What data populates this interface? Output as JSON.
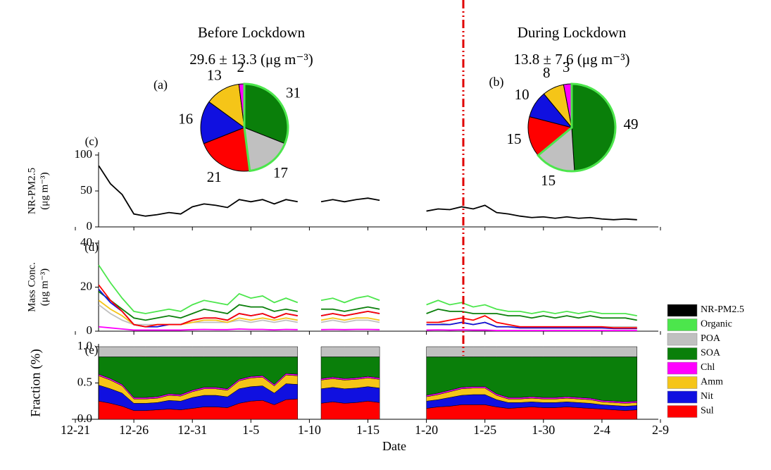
{
  "chart_data": [
    {
      "type": "pie",
      "title": "Before Lockdown",
      "subtitle": "29.6 ± 13.3 (μg m⁻³)",
      "panel": "(a)",
      "values": [
        31,
        17,
        21,
        16,
        13,
        2
      ],
      "colors": [
        "#0a7f0a",
        "#c0c0c0",
        "#ff0000",
        "#1010e0",
        "#f5c518",
        "#ff00ff"
      ]
    },
    {
      "type": "pie",
      "title": "During Lockdown",
      "subtitle": "13.8 ± 7.6 (μg m⁻³)",
      "panel": "(b)",
      "values": [
        49,
        15,
        15,
        10,
        8,
        3
      ],
      "colors": [
        "#0a7f0a",
        "#c0c0c0",
        "#ff0000",
        "#1010e0",
        "#f5c518",
        "#ff00ff"
      ]
    },
    {
      "type": "line",
      "panel": "(c)",
      "ylabel": [
        "NR-PM2.5",
        "(μg m⁻³)"
      ],
      "x": [
        "12-21",
        "12-22",
        "12-23",
        "12-24",
        "12-25",
        "12-26",
        "12-27",
        "12-28",
        "12-29",
        "12-30",
        "12-31",
        "1-1",
        "1-2",
        "1-3",
        "1-4",
        "1-5",
        "1-6",
        "1-7",
        "1-8",
        "1-9",
        "1-10",
        "1-11",
        "1-12",
        "1-13",
        "1-14",
        "1-15",
        "1-16",
        "1-17",
        "1-18",
        "1-19",
        "1-20",
        "1-21",
        "1-22",
        "1-23",
        "1-24",
        "1-25",
        "1-26",
        "1-27",
        "1-28",
        "1-29",
        "1-30",
        "1-31",
        "2-1",
        "2-2",
        "2-3",
        "2-4",
        "2-5",
        "2-6",
        "2-7",
        "2-8",
        "2-9"
      ],
      "ylim": [
        0,
        100
      ],
      "yticks": [
        0,
        50,
        100
      ],
      "series": [
        {
          "name": "NR-PM2.5",
          "color": "#000000",
          "values": [
            null,
            null,
            85,
            60,
            45,
            18,
            15,
            17,
            20,
            18,
            28,
            32,
            30,
            27,
            38,
            35,
            38,
            32,
            38,
            35,
            null,
            35,
            38,
            35,
            38,
            40,
            37,
            null,
            null,
            null,
            22,
            25,
            24,
            28,
            25,
            30,
            20,
            18,
            15,
            13,
            14,
            12,
            14,
            12,
            13,
            11,
            10,
            11,
            10,
            null,
            null
          ]
        }
      ]
    },
    {
      "type": "line",
      "panel": "(d)",
      "ylabel": [
        "Mass Conc.",
        "(μg m⁻³)"
      ],
      "x": [
        "12-21",
        "12-22",
        "12-23",
        "12-24",
        "12-25",
        "12-26",
        "12-27",
        "12-28",
        "12-29",
        "12-30",
        "12-31",
        "1-1",
        "1-2",
        "1-3",
        "1-4",
        "1-5",
        "1-6",
        "1-7",
        "1-8",
        "1-9",
        "1-10",
        "1-11",
        "1-12",
        "1-13",
        "1-14",
        "1-15",
        "1-16",
        "1-17",
        "1-18",
        "1-19",
        "1-20",
        "1-21",
        "1-22",
        "1-23",
        "1-24",
        "1-25",
        "1-26",
        "1-27",
        "1-28",
        "1-29",
        "1-30",
        "1-31",
        "2-1",
        "2-2",
        "2-3",
        "2-4",
        "2-5",
        "2-6",
        "2-7",
        "2-8",
        "2-9"
      ],
      "ylim": [
        0,
        40
      ],
      "yticks": [
        0,
        20,
        40
      ],
      "series": [
        {
          "name": "Organic",
          "color": "#4ce64c",
          "values": [
            null,
            null,
            30,
            22,
            15,
            9,
            8,
            9,
            10,
            9,
            12,
            14,
            13,
            12,
            17,
            15,
            16,
            13,
            15,
            13,
            null,
            14,
            15,
            13,
            15,
            16,
            14,
            null,
            null,
            null,
            12,
            14,
            12,
            13,
            11,
            12,
            10,
            9,
            9,
            8,
            9,
            8,
            9,
            8,
            9,
            8,
            8,
            8,
            7,
            null,
            null
          ]
        },
        {
          "name": "POA",
          "color": "#c0c0c0",
          "values": [
            null,
            null,
            12,
            8,
            5,
            3,
            3,
            3,
            3,
            3,
            4,
            4,
            4,
            4,
            5,
            4,
            5,
            4,
            5,
            4,
            null,
            4,
            5,
            4,
            5,
            5,
            4,
            null,
            null,
            null,
            4,
            4,
            3,
            4,
            3,
            4,
            2,
            2,
            2,
            2,
            2,
            2,
            2,
            2,
            2,
            2,
            2,
            2,
            2,
            null,
            null
          ]
        },
        {
          "name": "SOA",
          "color": "#0a7f0a",
          "values": [
            null,
            null,
            18,
            14,
            10,
            6,
            5,
            6,
            7,
            6,
            8,
            10,
            9,
            8,
            12,
            11,
            11,
            9,
            10,
            9,
            null,
            10,
            10,
            9,
            10,
            11,
            10,
            null,
            null,
            null,
            8,
            10,
            9,
            9,
            8,
            8,
            8,
            7,
            7,
            6,
            7,
            6,
            7,
            6,
            7,
            6,
            6,
            6,
            5,
            null,
            null
          ]
        },
        {
          "name": "Chl",
          "color": "#ff00ff",
          "values": [
            null,
            null,
            2,
            1.5,
            1,
            0.5,
            0.5,
            0.5,
            0.5,
            0.5,
            0.7,
            0.8,
            0.7,
            0.7,
            1,
            0.8,
            0.8,
            0.6,
            0.8,
            0.7,
            null,
            0.7,
            0.8,
            0.7,
            0.8,
            0.8,
            0.7,
            null,
            null,
            null,
            0.5,
            0.6,
            0.5,
            0.6,
            0.5,
            0.5,
            0.3,
            0.3,
            0.3,
            0.3,
            0.3,
            0.3,
            0.3,
            0.3,
            0.3,
            0.3,
            0.3,
            0.3,
            0.3,
            null,
            null
          ]
        },
        {
          "name": "Amm",
          "color": "#f5c518",
          "values": [
            null,
            null,
            14,
            10,
            7,
            3,
            2,
            3,
            3,
            3,
            4,
            5,
            5,
            4,
            6,
            5,
            6,
            5,
            6,
            5,
            null,
            5,
            6,
            5,
            6,
            6,
            5,
            null,
            null,
            null,
            3,
            3,
            3,
            4,
            3,
            4,
            2,
            2,
            1.5,
            1.5,
            1.5,
            1.5,
            1.5,
            1.5,
            1.5,
            1.5,
            1.2,
            1.2,
            1.2,
            null,
            null
          ]
        },
        {
          "name": "Nit",
          "color": "#1010e0",
          "values": [
            null,
            null,
            19,
            13,
            9,
            3,
            2,
            2,
            3,
            3,
            5,
            6,
            6,
            5,
            8,
            7,
            8,
            6,
            8,
            7,
            null,
            7,
            8,
            7,
            8,
            9,
            8,
            null,
            null,
            null,
            3,
            3,
            3,
            4,
            3,
            4,
            2,
            2,
            1.5,
            1.5,
            1.5,
            1.5,
            1.5,
            1.5,
            1.5,
            1.5,
            1.2,
            1.2,
            1.2,
            null,
            null
          ]
        },
        {
          "name": "Sul",
          "color": "#ff0000",
          "values": [
            null,
            null,
            21,
            14,
            9,
            3,
            2,
            3,
            3,
            3,
            5,
            6,
            6,
            5,
            8,
            7,
            8,
            6,
            8,
            7,
            null,
            7,
            8,
            7,
            8,
            9,
            8,
            null,
            null,
            null,
            4,
            4,
            5,
            6,
            5,
            7,
            4,
            3,
            2,
            2,
            2,
            2,
            2,
            2,
            2,
            2,
            1.5,
            1.5,
            1.5,
            null,
            null
          ]
        }
      ]
    },
    {
      "type": "stacked_area",
      "panel": "(e)",
      "ylabel": "Fraction (%)",
      "xlabel": "Date",
      "x": [
        "12-21",
        "12-22",
        "12-23",
        "12-24",
        "12-25",
        "12-26",
        "12-27",
        "12-28",
        "12-29",
        "12-30",
        "12-31",
        "1-1",
        "1-2",
        "1-3",
        "1-4",
        "1-5",
        "1-6",
        "1-7",
        "1-8",
        "1-9",
        "1-10",
        "1-11",
        "1-12",
        "1-13",
        "1-14",
        "1-15",
        "1-16",
        "1-17",
        "1-18",
        "1-19",
        "1-20",
        "1-21",
        "1-22",
        "1-23",
        "1-24",
        "1-25",
        "1-26",
        "1-27",
        "1-28",
        "1-29",
        "1-30",
        "1-31",
        "2-1",
        "2-2",
        "2-3",
        "2-4",
        "2-5",
        "2-6",
        "2-7",
        "2-8",
        "2-9"
      ],
      "xticks": [
        "12-21",
        "12-26",
        "12-31",
        "1-5",
        "1-10",
        "1-15",
        "1-20",
        "1-25",
        "1-30",
        "2-4",
        "2-9"
      ],
      "ylim": [
        0,
        1
      ],
      "yticks": [
        {
          "value": 0,
          "label": "0.0"
        },
        {
          "value": 0.5,
          "label": "0.5"
        },
        {
          "value": 1,
          "label": "1.0"
        }
      ],
      "series": [
        {
          "color": "#ff0000",
          "values": [
            null,
            null,
            0.25,
            0.22,
            0.18,
            0.12,
            0.12,
            0.13,
            0.14,
            0.13,
            0.15,
            0.17,
            0.17,
            0.16,
            0.22,
            0.25,
            0.26,
            0.2,
            0.27,
            0.28,
            null,
            0.22,
            0.24,
            0.22,
            0.23,
            0.25,
            0.23,
            null,
            null,
            null,
            0.15,
            0.17,
            0.18,
            0.2,
            0.2,
            0.2,
            0.17,
            0.15,
            0.16,
            0.17,
            0.16,
            0.16,
            0.17,
            0.16,
            0.15,
            0.14,
            0.13,
            0.12,
            0.13,
            null,
            null
          ]
        },
        {
          "color": "#1010e0",
          "values": [
            null,
            null,
            0.22,
            0.2,
            0.18,
            0.1,
            0.1,
            0.1,
            0.12,
            0.12,
            0.15,
            0.16,
            0.16,
            0.15,
            0.2,
            0.2,
            0.2,
            0.16,
            0.22,
            0.2,
            null,
            0.2,
            0.2,
            0.2,
            0.2,
            0.2,
            0.2,
            null,
            null,
            null,
            0.1,
            0.1,
            0.12,
            0.13,
            0.14,
            0.14,
            0.1,
            0.08,
            0.07,
            0.07,
            0.07,
            0.07,
            0.07,
            0.07,
            0.07,
            0.06,
            0.06,
            0.06,
            0.06,
            null,
            null
          ]
        },
        {
          "color": "#f5c518",
          "values": [
            null,
            null,
            0.13,
            0.12,
            0.1,
            0.06,
            0.06,
            0.06,
            0.07,
            0.07,
            0.08,
            0.09,
            0.09,
            0.09,
            0.11,
            0.12,
            0.12,
            0.1,
            0.12,
            0.12,
            null,
            0.12,
            0.12,
            0.12,
            0.12,
            0.12,
            0.12,
            null,
            null,
            null,
            0.06,
            0.07,
            0.08,
            0.09,
            0.09,
            0.09,
            0.06,
            0.05,
            0.05,
            0.05,
            0.05,
            0.05,
            0.05,
            0.05,
            0.05,
            0.04,
            0.04,
            0.04,
            0.04,
            null,
            null
          ]
        },
        {
          "color": "#ff00ff",
          "values": [
            null,
            null,
            0.02,
            0.02,
            0.02,
            0.02,
            0.02,
            0.02,
            0.02,
            0.02,
            0.02,
            0.02,
            0.02,
            0.02,
            0.02,
            0.02,
            0.02,
            0.02,
            0.02,
            0.02,
            null,
            0.02,
            0.02,
            0.02,
            0.02,
            0.02,
            0.02,
            null,
            null,
            null,
            0.02,
            0.02,
            0.02,
            0.02,
            0.02,
            0.02,
            0.02,
            0.02,
            0.02,
            0.02,
            0.02,
            0.02,
            0.02,
            0.02,
            0.02,
            0.02,
            0.02,
            0.02,
            0.02,
            null,
            null
          ]
        },
        {
          "color": "#0a7f0a",
          "values": [
            null,
            null,
            0.24,
            0.3,
            0.38,
            0.56,
            0.56,
            0.55,
            0.51,
            0.52,
            0.46,
            0.42,
            0.42,
            0.44,
            0.31,
            0.27,
            0.26,
            0.38,
            0.23,
            0.24,
            null,
            0.3,
            0.28,
            0.3,
            0.29,
            0.27,
            0.29,
            null,
            null,
            null,
            0.53,
            0.5,
            0.46,
            0.42,
            0.41,
            0.41,
            0.51,
            0.56,
            0.56,
            0.55,
            0.56,
            0.56,
            0.55,
            0.56,
            0.57,
            0.6,
            0.61,
            0.62,
            0.61,
            null,
            null
          ]
        },
        {
          "color": "#c0c0c0",
          "values": [
            null,
            null,
            0.14,
            0.14,
            0.14,
            0.14,
            0.14,
            0.14,
            0.14,
            0.14,
            0.14,
            0.14,
            0.14,
            0.14,
            0.14,
            0.14,
            0.14,
            0.14,
            0.14,
            0.14,
            null,
            0.14,
            0.14,
            0.14,
            0.14,
            0.14,
            0.14,
            null,
            null,
            null,
            0.14,
            0.14,
            0.14,
            0.14,
            0.14,
            0.14,
            0.14,
            0.14,
            0.14,
            0.14,
            0.14,
            0.14,
            0.14,
            0.14,
            0.14,
            0.14,
            0.14,
            0.14,
            0.14,
            null,
            null
          ]
        }
      ]
    }
  ]
}
